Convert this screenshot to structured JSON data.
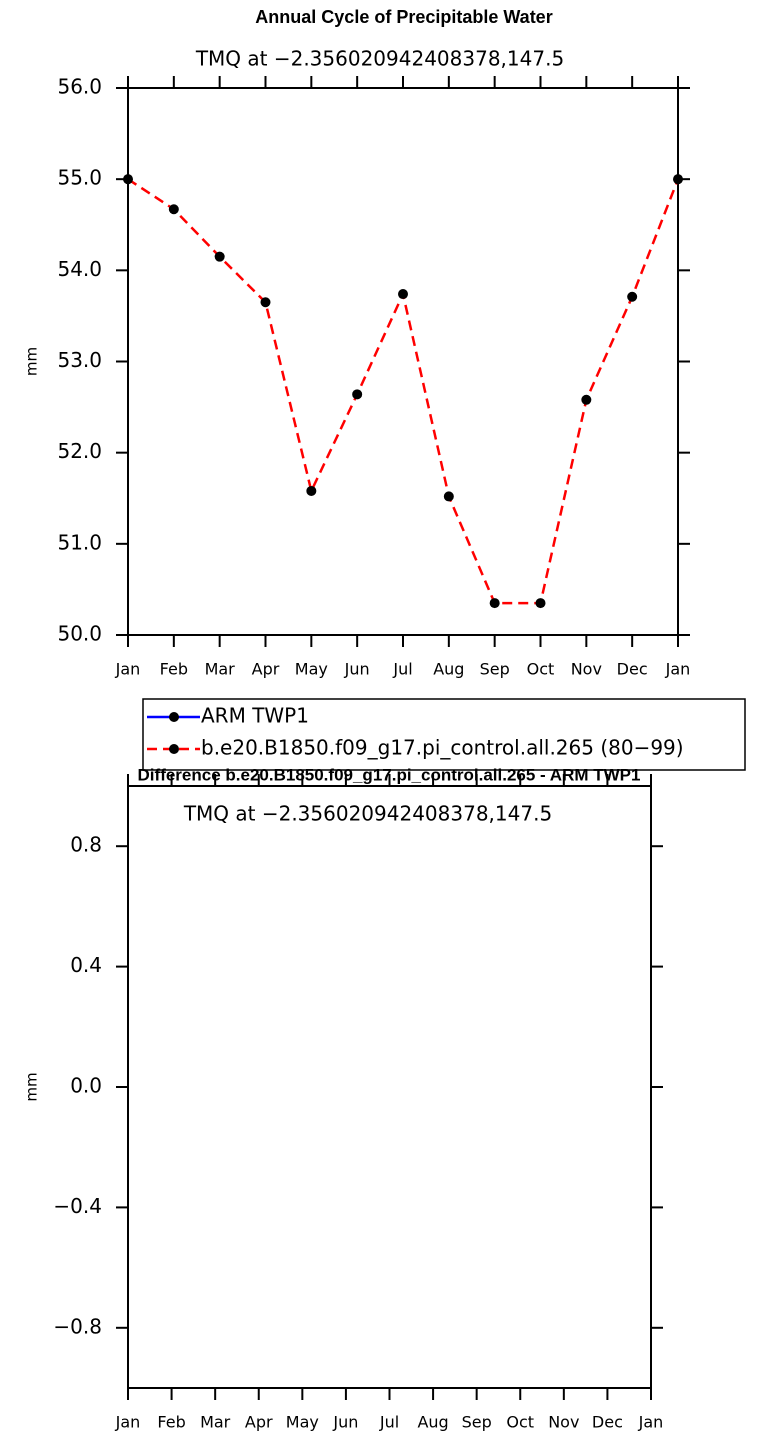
{
  "chart_data": [
    {
      "type": "line",
      "title": "Annual Cycle of Precipitable Water",
      "subtitle": "TMQ at −2.356020942408378,147.5",
      "ylabel": "mm",
      "categories": [
        "Jan",
        "Feb",
        "Mar",
        "Apr",
        "May",
        "Jun",
        "Jul",
        "Aug",
        "Sep",
        "Oct",
        "Nov",
        "Dec",
        "Jan"
      ],
      "ylim": [
        50,
        56
      ],
      "yticks": [
        {
          "value": 50,
          "label": "50.0"
        },
        {
          "value": 51,
          "label": "51.0"
        },
        {
          "value": 52,
          "label": "52.0"
        },
        {
          "value": 53,
          "label": "53.0"
        },
        {
          "value": 54,
          "label": "54.0"
        },
        {
          "value": 55,
          "label": "55.0"
        },
        {
          "value": 56,
          "label": "56.0"
        }
      ],
      "series": [
        {
          "name": "ARM TWP1",
          "color": "#0000ff",
          "line_style": "solid",
          "values": [
            null,
            null,
            null,
            null,
            null,
            null,
            null,
            null,
            null,
            null,
            null,
            null,
            null
          ]
        },
        {
          "name": "b.e20.B1850.f09_g17.pi_control.all.265 (80−99)",
          "color": "#ff0000",
          "line_style": "dashed",
          "values": [
            55.0,
            54.67,
            54.15,
            53.65,
            51.58,
            52.64,
            53.74,
            51.52,
            50.35,
            50.35,
            52.58,
            53.71,
            55.0
          ]
        }
      ]
    },
    {
      "type": "line",
      "title": "Difference b.e20.B1850.f09_g17.pi_control.all.265 - ARM TWP1",
      "subtitle": "TMQ at −2.356020942408378,147.5",
      "ylabel": "mm",
      "categories": [
        "Jan",
        "Feb",
        "Mar",
        "Apr",
        "May",
        "Jun",
        "Jul",
        "Aug",
        "Sep",
        "Oct",
        "Nov",
        "Dec",
        "Jan"
      ],
      "ylim": [
        -1,
        1
      ],
      "yticks": [
        {
          "value": -0.8,
          "label": "−0.8"
        },
        {
          "value": -0.4,
          "label": "−0.4"
        },
        {
          "value": 0,
          "label": "0.0"
        },
        0.4,
        0.8
      ],
      "series": []
    }
  ]
}
